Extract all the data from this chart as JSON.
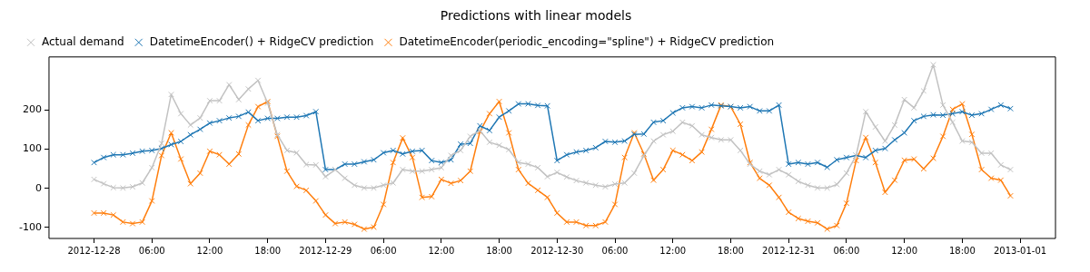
{
  "chart_data": {
    "type": "line",
    "title": "Predictions with linear models",
    "legend": "top left",
    "marker": "cross",
    "line_style": "solid",
    "grid": false,
    "xlim": [
      "2012-12-27T19:20",
      "2013-01-01T03:40"
    ],
    "xticks": [
      {
        "value": "2012-12-28",
        "label": "2012-12-28"
      },
      {
        "value": "2012-12-28T06:00",
        "label": "06:00"
      },
      {
        "value": "2012-12-28T12:00",
        "label": "12:00"
      },
      {
        "value": "2012-12-28T18:00",
        "label": "18:00"
      },
      {
        "value": "2012-12-29",
        "label": "2012-12-29"
      },
      {
        "value": "2012-12-29T06:00",
        "label": "06:00"
      },
      {
        "value": "2012-12-29T12:00",
        "label": "12:00"
      },
      {
        "value": "2012-12-29T18:00",
        "label": "18:00"
      },
      {
        "value": "2012-12-30",
        "label": "2012-12-30"
      },
      {
        "value": "2012-12-30T06:00",
        "label": "06:00"
      },
      {
        "value": "2012-12-30T12:00",
        "label": "12:00"
      },
      {
        "value": "2012-12-30T18:00",
        "label": "18:00"
      },
      {
        "value": "2012-12-31",
        "label": "2012-12-31"
      },
      {
        "value": "2012-12-31T06:00",
        "label": "06:00"
      },
      {
        "value": "2012-12-31T12:00",
        "label": "12:00"
      },
      {
        "value": "2012-12-31T18:00",
        "label": "18:00"
      },
      {
        "value": "2013-01-01",
        "label": "2013-01-01"
      }
    ],
    "ylim": [
      -128,
      336
    ],
    "yticks": [
      -100,
      0,
      100,
      200
    ],
    "x": [
      "2012-12-28T00:00",
      "2012-12-28T01:00",
      "2012-12-28T02:00",
      "2012-12-28T03:00",
      "2012-12-28T04:00",
      "2012-12-28T05:00",
      "2012-12-28T06:00",
      "2012-12-28T07:00",
      "2012-12-28T08:00",
      "2012-12-28T09:00",
      "2012-12-28T10:00",
      "2012-12-28T11:00",
      "2012-12-28T12:00",
      "2012-12-28T13:00",
      "2012-12-28T14:00",
      "2012-12-28T15:00",
      "2012-12-28T16:00",
      "2012-12-28T17:00",
      "2012-12-28T18:00",
      "2012-12-28T19:00",
      "2012-12-28T20:00",
      "2012-12-28T21:00",
      "2012-12-28T22:00",
      "2012-12-28T23:00",
      "2012-12-29T00:00",
      "2012-12-29T01:00",
      "2012-12-29T02:00",
      "2012-12-29T03:00",
      "2012-12-29T04:00",
      "2012-12-29T05:00",
      "2012-12-29T06:00",
      "2012-12-29T07:00",
      "2012-12-29T08:00",
      "2012-12-29T09:00",
      "2012-12-29T10:00",
      "2012-12-29T11:00",
      "2012-12-29T12:00",
      "2012-12-29T13:00",
      "2012-12-29T14:00",
      "2012-12-29T15:00",
      "2012-12-29T16:00",
      "2012-12-29T17:00",
      "2012-12-29T18:00",
      "2012-12-29T19:00",
      "2012-12-29T20:00",
      "2012-12-29T21:00",
      "2012-12-29T22:00",
      "2012-12-29T23:00",
      "2012-12-30T00:00",
      "2012-12-30T01:00",
      "2012-12-30T02:00",
      "2012-12-30T03:00",
      "2012-12-30T04:00",
      "2012-12-30T05:00",
      "2012-12-30T06:00",
      "2012-12-30T07:00",
      "2012-12-30T08:00",
      "2012-12-30T09:00",
      "2012-12-30T10:00",
      "2012-12-30T11:00",
      "2012-12-30T12:00",
      "2012-12-30T13:00",
      "2012-12-30T14:00",
      "2012-12-30T15:00",
      "2012-12-30T16:00",
      "2012-12-30T17:00",
      "2012-12-30T18:00",
      "2012-12-30T19:00",
      "2012-12-30T20:00",
      "2012-12-30T21:00",
      "2012-12-30T22:00",
      "2012-12-30T23:00",
      "2012-12-31T00:00",
      "2012-12-31T01:00",
      "2012-12-31T02:00",
      "2012-12-31T03:00",
      "2012-12-31T04:00",
      "2012-12-31T05:00",
      "2012-12-31T06:00",
      "2012-12-31T07:00",
      "2012-12-31T08:00",
      "2012-12-31T09:00",
      "2012-12-31T10:00",
      "2012-12-31T11:00",
      "2012-12-31T12:00",
      "2012-12-31T13:00",
      "2012-12-31T14:00",
      "2012-12-31T15:00",
      "2012-12-31T16:00",
      "2012-12-31T17:00",
      "2012-12-31T18:00",
      "2012-12-31T19:00",
      "2012-12-31T20:00",
      "2012-12-31T21:00",
      "2012-12-31T22:00",
      "2012-12-31T23:00"
    ],
    "series": [
      {
        "name": "Actual demand",
        "color": "#c2c2c2",
        "values": [
          23,
          12,
          2,
          1,
          4,
          14,
          53,
          115,
          240,
          191,
          162,
          180,
          224,
          224,
          265,
          227,
          254,
          276,
          218,
          137,
          97,
          91,
          61,
          60,
          30,
          48,
          26,
          8,
          1,
          1,
          8,
          14,
          48,
          44,
          44,
          48,
          53,
          84,
          97,
          133,
          148,
          118,
          110,
          99,
          66,
          62,
          53,
          30,
          41,
          29,
          20,
          14,
          8,
          4,
          11,
          14,
          39,
          84,
          121,
          137,
          146,
          169,
          160,
          137,
          130,
          124,
          124,
          97,
          62,
          44,
          35,
          48,
          35,
          18,
          8,
          1,
          1,
          10,
          39,
          84,
          196,
          157,
          121,
          162,
          227,
          206,
          249,
          316,
          213,
          169,
          121,
          118,
          90,
          90,
          60,
          48
        ]
      },
      {
        "name": "DatetimeEncoder() + RidgeCV prediction",
        "color": "#1f77b4",
        "values": [
          66,
          79,
          86,
          86,
          90,
          95,
          97,
          102,
          112,
          120,
          137,
          151,
          167,
          173,
          180,
          184,
          195,
          173,
          179,
          179,
          182,
          182,
          186,
          196,
          48,
          48,
          62,
          62,
          68,
          73,
          91,
          97,
          88,
          95,
          97,
          71,
          66,
          73,
          113,
          115,
          160,
          148,
          182,
          198,
          216,
          216,
          212,
          211,
          71,
          86,
          93,
          97,
          104,
          120,
          118,
          121,
          138,
          139,
          169,
          173,
          193,
          206,
          209,
          206,
          213,
          211,
          209,
          206,
          209,
          198,
          198,
          213,
          62,
          66,
          62,
          66,
          54,
          73,
          79,
          84,
          79,
          97,
          102,
          124,
          142,
          173,
          184,
          188,
          187,
          191,
          196,
          187,
          191,
          202,
          213,
          204
        ]
      },
      {
        "name": "DatetimeEncoder(periodic_encoding=\"spline\") + RidgeCV prediction",
        "color": "#ff7f0e",
        "values": [
          -63,
          -63,
          -68,
          -86,
          -90,
          -86,
          -32,
          84,
          142,
          75,
          12,
          39,
          95,
          86,
          62,
          88,
          162,
          209,
          222,
          133,
          44,
          5,
          -5,
          -32,
          -68,
          -90,
          -86,
          -92,
          -104,
          -99,
          -41,
          66,
          129,
          79,
          -23,
          -21,
          23,
          13,
          20,
          44,
          145,
          191,
          222,
          142,
          48,
          13,
          -5,
          -23,
          -63,
          -86,
          -86,
          -95,
          -95,
          -86,
          -41,
          79,
          142,
          88,
          21,
          48,
          97,
          86,
          71,
          93,
          151,
          213,
          209,
          164,
          66,
          26,
          8,
          -23,
          -61,
          -77,
          -84,
          -88,
          -104,
          -95,
          -38,
          71,
          130,
          66,
          -10,
          21,
          72,
          75,
          50,
          77,
          133,
          202,
          216,
          138,
          48,
          26,
          21,
          -19
        ]
      }
    ]
  }
}
